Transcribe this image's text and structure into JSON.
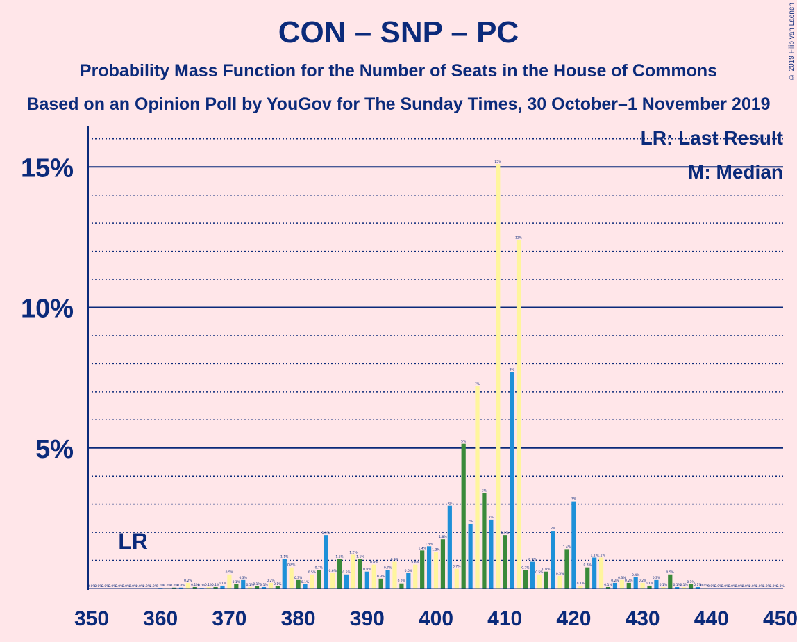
{
  "title": "CON – SNP – PC",
  "subtitle1": "Probability Mass Function for the Number of Seats in the House of Commons",
  "subtitle2": "Based on an Opinion Poll by YouGov for The Sunday Times, 30 October–1 November 2019",
  "copyright": "© 2019 Filip van Laenen",
  "legend": {
    "lr": "LR: Last Result",
    "median": "M: Median"
  },
  "lr_label": "LR",
  "colors": {
    "background": "#FFE6E9",
    "axis": "#0B2A7A",
    "green": "#3A8A3A",
    "blue": "#1E90D8",
    "yellow": "#FFF59D"
  },
  "chart_data": {
    "type": "bar",
    "xlim": [
      350,
      450
    ],
    "ylim": [
      0,
      16.5
    ],
    "x_ticks": [
      350,
      360,
      370,
      380,
      390,
      400,
      410,
      420,
      430,
      440,
      450
    ],
    "y_ticks": [
      {
        "value": 5,
        "label": "5%"
      },
      {
        "value": 10,
        "label": "10%"
      },
      {
        "value": 15,
        "label": "15%"
      }
    ],
    "last_result_seat": 356,
    "median_seat": 409,
    "bars": [
      {
        "x": 350,
        "y": 0,
        "c": "g"
      },
      {
        "x": 351,
        "y": 0,
        "c": "b"
      },
      {
        "x": 352,
        "y": 0,
        "c": "y"
      },
      {
        "x": 353,
        "y": 0,
        "c": "g"
      },
      {
        "x": 354,
        "y": 0,
        "c": "b"
      },
      {
        "x": 355,
        "y": 0,
        "c": "y"
      },
      {
        "x": 356,
        "y": 0,
        "c": "g"
      },
      {
        "x": 357,
        "y": 0,
        "c": "b"
      },
      {
        "x": 358,
        "y": 0,
        "c": "y"
      },
      {
        "x": 359,
        "y": 0,
        "c": "g"
      },
      {
        "x": 360,
        "y": 0.02,
        "c": "b"
      },
      {
        "x": 361,
        "y": 0.02,
        "c": "y"
      },
      {
        "x": 362,
        "y": 0.03,
        "c": "g"
      },
      {
        "x": 363,
        "y": 0.03,
        "c": "b"
      },
      {
        "x": 364,
        "y": 0.2,
        "c": "y"
      },
      {
        "x": 365,
        "y": 0.05,
        "c": "g"
      },
      {
        "x": 366,
        "y": 0.02,
        "c": "b"
      },
      {
        "x": 367,
        "y": 0.05,
        "c": "y"
      },
      {
        "x": 368,
        "y": 0.05,
        "c": "g"
      },
      {
        "x": 369,
        "y": 0.1,
        "c": "b"
      },
      {
        "x": 370,
        "y": 0.5,
        "c": "y"
      },
      {
        "x": 371,
        "y": 0.15,
        "c": "g"
      },
      {
        "x": 372,
        "y": 0.3,
        "c": "b"
      },
      {
        "x": 373,
        "y": 0.05,
        "c": "y"
      },
      {
        "x": 374,
        "y": 0.08,
        "c": "g"
      },
      {
        "x": 375,
        "y": 0.05,
        "c": "b"
      },
      {
        "x": 376,
        "y": 0.2,
        "c": "y"
      },
      {
        "x": 377,
        "y": 0.08,
        "c": "g"
      },
      {
        "x": 378,
        "y": 1.05,
        "c": "b"
      },
      {
        "x": 379,
        "y": 0.75,
        "c": "y"
      },
      {
        "x": 380,
        "y": 0.3,
        "c": "g"
      },
      {
        "x": 381,
        "y": 0.15,
        "c": "b"
      },
      {
        "x": 382,
        "y": 0.5,
        "c": "y"
      },
      {
        "x": 383,
        "y": 0.65,
        "c": "g"
      },
      {
        "x": 384,
        "y": 1.9,
        "c": "b"
      },
      {
        "x": 385,
        "y": 0.55,
        "c": "y"
      },
      {
        "x": 386,
        "y": 1.05,
        "c": "g"
      },
      {
        "x": 387,
        "y": 0.5,
        "c": "b"
      },
      {
        "x": 388,
        "y": 1.2,
        "c": "y"
      },
      {
        "x": 389,
        "y": 1.05,
        "c": "g"
      },
      {
        "x": 390,
        "y": 0.6,
        "c": "b"
      },
      {
        "x": 391,
        "y": 0.85,
        "c": "y"
      },
      {
        "x": 392,
        "y": 0.35,
        "c": "g"
      },
      {
        "x": 393,
        "y": 0.65,
        "c": "b"
      },
      {
        "x": 394,
        "y": 0.95,
        "c": "y"
      },
      {
        "x": 395,
        "y": 0.18,
        "c": "g"
      },
      {
        "x": 396,
        "y": 0.55,
        "c": "b"
      },
      {
        "x": 397,
        "y": 0.85,
        "c": "y"
      },
      {
        "x": 398,
        "y": 1.35,
        "c": "g"
      },
      {
        "x": 399,
        "y": 1.5,
        "c": "b"
      },
      {
        "x": 400,
        "y": 1.3,
        "c": "y"
      },
      {
        "x": 401,
        "y": 1.75,
        "c": "g"
      },
      {
        "x": 402,
        "y": 2.95,
        "c": "b"
      },
      {
        "x": 403,
        "y": 0.7,
        "c": "y"
      },
      {
        "x": 404,
        "y": 5.15,
        "c": "g"
      },
      {
        "x": 405,
        "y": 2.3,
        "c": "b"
      },
      {
        "x": 406,
        "y": 7.2,
        "c": "y"
      },
      {
        "x": 407,
        "y": 3.4,
        "c": "g"
      },
      {
        "x": 408,
        "y": 2.45,
        "c": "b"
      },
      {
        "x": 409,
        "y": 15.1,
        "c": "y"
      },
      {
        "x": 410,
        "y": 1.9,
        "c": "g"
      },
      {
        "x": 411,
        "y": 7.7,
        "c": "b"
      },
      {
        "x": 412,
        "y": 12.4,
        "c": "y"
      },
      {
        "x": 413,
        "y": 0.65,
        "c": "g"
      },
      {
        "x": 414,
        "y": 0.95,
        "c": "b"
      },
      {
        "x": 415,
        "y": 0.5,
        "c": "y"
      },
      {
        "x": 416,
        "y": 0.6,
        "c": "g"
      },
      {
        "x": 417,
        "y": 2.05,
        "c": "b"
      },
      {
        "x": 418,
        "y": 0.45,
        "c": "y"
      },
      {
        "x": 419,
        "y": 1.4,
        "c": "g"
      },
      {
        "x": 420,
        "y": 3.1,
        "c": "b"
      },
      {
        "x": 421,
        "y": 0.1,
        "c": "y"
      },
      {
        "x": 422,
        "y": 0.75,
        "c": "g"
      },
      {
        "x": 423,
        "y": 1.1,
        "c": "b"
      },
      {
        "x": 424,
        "y": 1.1,
        "c": "y"
      },
      {
        "x": 425,
        "y": 0.05,
        "c": "g"
      },
      {
        "x": 426,
        "y": 0.2,
        "c": "b"
      },
      {
        "x": 427,
        "y": 0.3,
        "c": "y"
      },
      {
        "x": 428,
        "y": 0.2,
        "c": "g"
      },
      {
        "x": 429,
        "y": 0.4,
        "c": "b"
      },
      {
        "x": 430,
        "y": 0.2,
        "c": "y"
      },
      {
        "x": 431,
        "y": 0.1,
        "c": "g"
      },
      {
        "x": 432,
        "y": 0.3,
        "c": "b"
      },
      {
        "x": 433,
        "y": 0.05,
        "c": "y"
      },
      {
        "x": 434,
        "y": 0.5,
        "c": "g"
      },
      {
        "x": 435,
        "y": 0.05,
        "c": "b"
      },
      {
        "x": 436,
        "y": 0.05,
        "c": "y"
      },
      {
        "x": 437,
        "y": 0.15,
        "c": "g"
      },
      {
        "x": 438,
        "y": 0.05,
        "c": "b"
      },
      {
        "x": 439,
        "y": 0.02,
        "c": "y"
      },
      {
        "x": 440,
        "y": 0,
        "c": "g"
      },
      {
        "x": 441,
        "y": 0,
        "c": "b"
      },
      {
        "x": 442,
        "y": 0,
        "c": "y"
      },
      {
        "x": 443,
        "y": 0,
        "c": "g"
      },
      {
        "x": 444,
        "y": 0,
        "c": "b"
      },
      {
        "x": 445,
        "y": 0,
        "c": "y"
      },
      {
        "x": 446,
        "y": 0,
        "c": "g"
      },
      {
        "x": 447,
        "y": 0,
        "c": "b"
      },
      {
        "x": 448,
        "y": 0,
        "c": "y"
      },
      {
        "x": 449,
        "y": 0,
        "c": "g"
      },
      {
        "x": 450,
        "y": 0,
        "c": "b"
      }
    ]
  }
}
